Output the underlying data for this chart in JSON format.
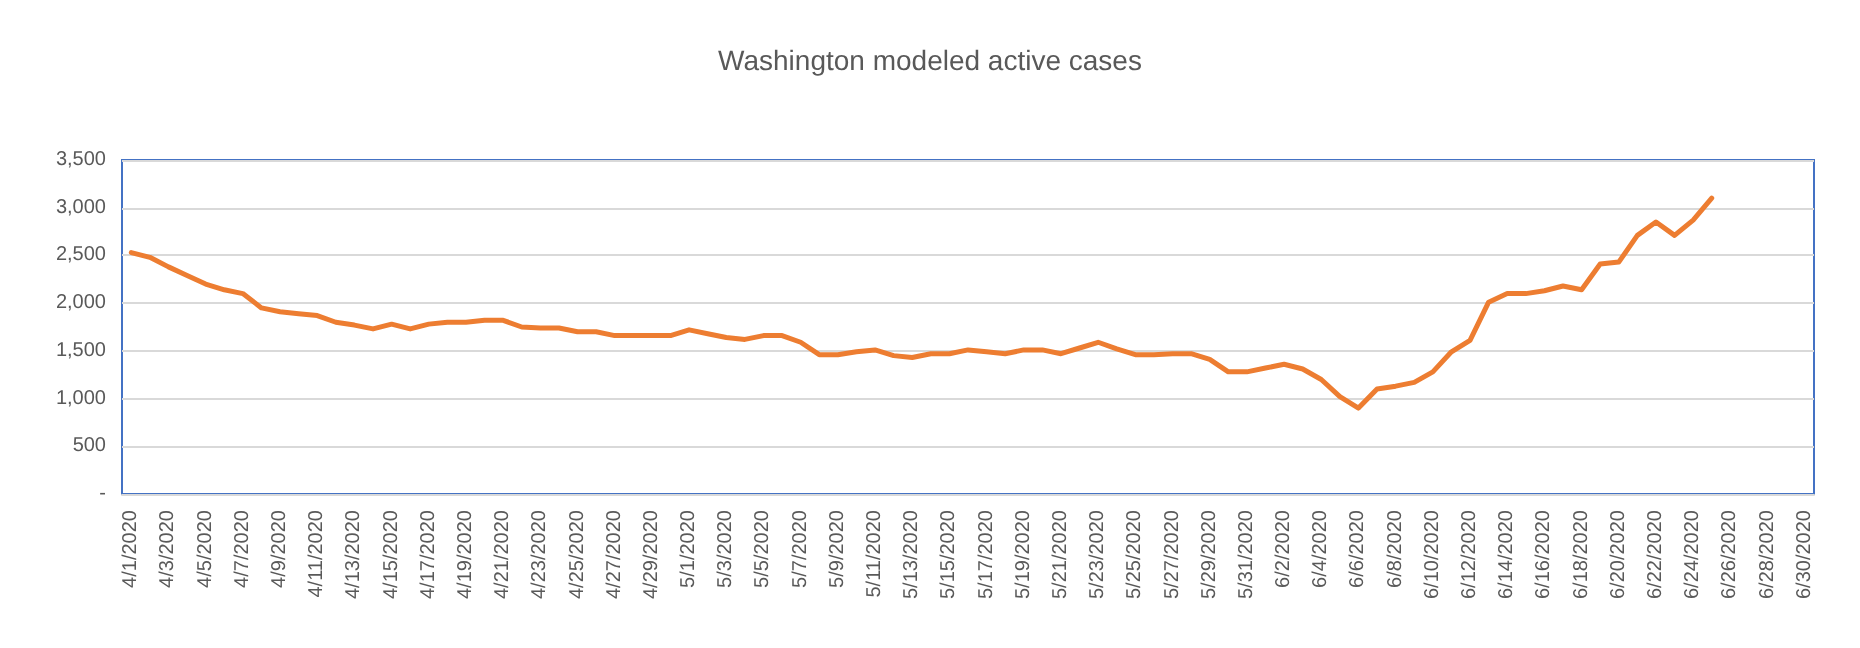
{
  "chart_data": {
    "type": "line",
    "title": "Washington modeled active cases",
    "categories": [
      "4/1/2020",
      null,
      "4/3/2020",
      null,
      "4/5/2020",
      null,
      "4/7/2020",
      null,
      "4/9/2020",
      null,
      "4/11/2020",
      null,
      "4/13/2020",
      null,
      "4/15/2020",
      null,
      "4/17/2020",
      null,
      "4/19/2020",
      null,
      "4/21/2020",
      null,
      "4/23/2020",
      null,
      "4/25/2020",
      null,
      "4/27/2020",
      null,
      "4/29/2020",
      null,
      "5/1/2020",
      null,
      "5/3/2020",
      null,
      "5/5/2020",
      null,
      "5/7/2020",
      null,
      "5/9/2020",
      null,
      "5/11/2020",
      null,
      "5/13/2020",
      null,
      "5/15/2020",
      null,
      "5/17/2020",
      null,
      "5/19/2020",
      null,
      "5/21/2020",
      null,
      "5/23/2020",
      null,
      "5/25/2020",
      null,
      "5/27/2020",
      null,
      "5/29/2020",
      null,
      "5/31/2020",
      null,
      "6/2/2020",
      null,
      "6/4/2020",
      null,
      "6/6/2020",
      null,
      "6/8/2020",
      null,
      "6/10/2020",
      null,
      "6/12/2020",
      null,
      "6/14/2020",
      null,
      "6/16/2020",
      null,
      "6/18/2020",
      null,
      "6/20/2020",
      null,
      "6/22/2020",
      null,
      "6/24/2020",
      null,
      "6/26/2020",
      null,
      "6/28/2020",
      null,
      "6/30/2020"
    ],
    "series": [
      {
        "color": "#ed7d31",
        "values": [
          2530,
          2480,
          2380,
          2290,
          2200,
          2140,
          2100,
          1950,
          1910,
          1890,
          1870,
          1800,
          1770,
          1730,
          1780,
          1730,
          1780,
          1800,
          1800,
          1820,
          1820,
          1750,
          1740,
          1740,
          1700,
          1700,
          1660,
          1660,
          1660,
          1660,
          1720,
          1680,
          1640,
          1620,
          1660,
          1660,
          1590,
          1460,
          1460,
          1490,
          1510,
          1450,
          1430,
          1470,
          1470,
          1510,
          1490,
          1470,
          1510,
          1510,
          1470,
          1530,
          1590,
          1520,
          1460,
          1460,
          1470,
          1470,
          1410,
          1280,
          1280,
          1320,
          1360,
          1310,
          1200,
          1020,
          900,
          1100,
          1130,
          1170,
          1280,
          1490,
          1610,
          2010,
          2100,
          2100,
          2130,
          2180,
          2140,
          2410,
          2430,
          2710,
          2850,
          2710,
          2870,
          3100,
          null,
          null,
          null,
          null,
          null
        ]
      }
    ],
    "ylim": [
      0,
      3500
    ],
    "yticks": [
      {
        "value": 0,
        "label": "-"
      },
      {
        "value": 500,
        "label": "500"
      },
      {
        "value": 1000,
        "label": "1,000"
      },
      {
        "value": 1500,
        "label": "1,500"
      },
      {
        "value": 2000,
        "label": "2,000"
      },
      {
        "value": 2500,
        "label": "2,500"
      },
      {
        "value": 3000,
        "label": "3,000"
      },
      {
        "value": 3500,
        "label": "3,500"
      }
    ],
    "grid": "y",
    "marker": "none",
    "line_style": "solid"
  }
}
